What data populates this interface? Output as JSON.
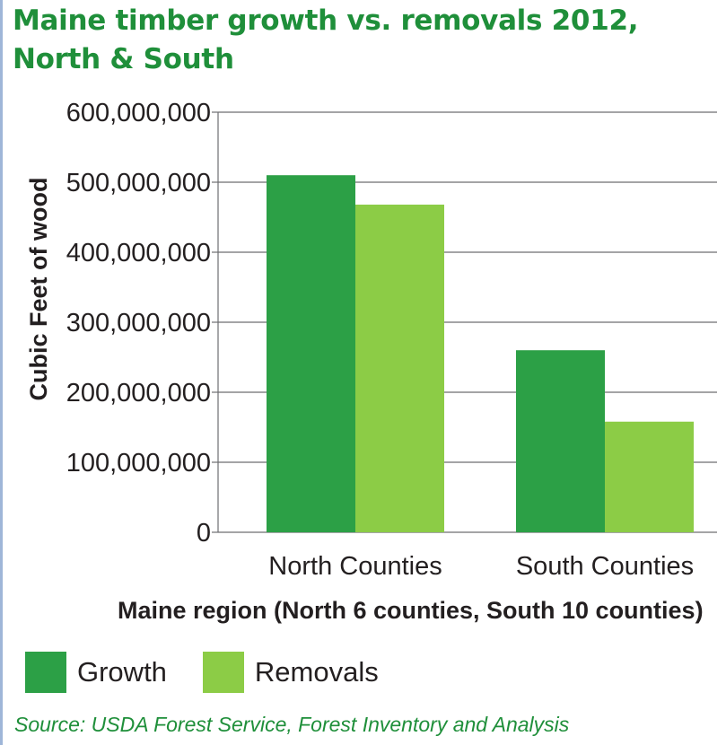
{
  "title_line1": "Maine timber growth vs. removals 2012,",
  "title_line2": "North & South",
  "source": "Source: USDA Forest Service, Forest Inventory and Analysis",
  "colors": {
    "growth": "#2ca046",
    "removals": "#8ccc46",
    "title": "#1f8f3a",
    "grid": "#6d6e71",
    "text": "#231f20"
  },
  "chart_data": {
    "type": "bar",
    "categories": [
      "North Counties",
      "South Counties"
    ],
    "series": [
      {
        "name": "Growth",
        "values": [
          510000000,
          260000000
        ]
      },
      {
        "name": "Removals",
        "values": [
          468000000,
          158000000
        ]
      }
    ],
    "xlabel": "Maine region (North 6 counties, South 10 counties)",
    "ylabel": "Cubic Feet of wood",
    "ylim": [
      0,
      600000000
    ],
    "yticks": [
      0,
      100000000,
      200000000,
      300000000,
      400000000,
      500000000,
      600000000
    ],
    "ytick_labels": [
      "0",
      "100,000,000",
      "200,000,000",
      "300,000,000",
      "400,000,000",
      "500,000,000",
      "600,000,000"
    ],
    "grid": true,
    "legend_position": "bottom-left"
  }
}
